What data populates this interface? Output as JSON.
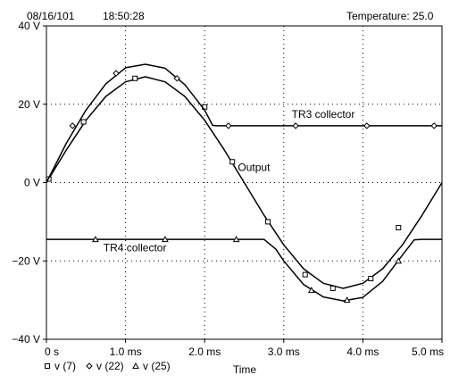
{
  "header": {
    "date": "08/16/101",
    "time": "18:50:28",
    "temperature": "Temperature: 25.0"
  },
  "chart_data": {
    "type": "line",
    "xlabel": "Time",
    "ylabel": "",
    "xlim": [
      0,
      5
    ],
    "ylim": [
      -40,
      40
    ],
    "grid": true,
    "x_ticks": [
      {
        "value": 0,
        "label": "0 s"
      },
      {
        "value": 1,
        "label": "1.0 ms"
      },
      {
        "value": 2,
        "label": "2.0 ms"
      },
      {
        "value": 3,
        "label": "3.0 ms"
      },
      {
        "value": 4,
        "label": "4.0 ms"
      },
      {
        "value": 5,
        "label": "5.0 ms"
      }
    ],
    "y_ticks": [
      {
        "value": 40,
        "label": "40 V"
      },
      {
        "value": 20,
        "label": "20 V"
      },
      {
        "value": 0,
        "label": "0 V"
      },
      {
        "value": -20,
        "label": "−20 V"
      },
      {
        "value": -40,
        "label": "−40 V"
      }
    ],
    "series": [
      {
        "name": "v (7)",
        "marker": "square",
        "x": [
          0,
          0.25,
          0.5,
          0.75,
          1.0,
          1.25,
          1.5,
          1.75,
          2.0,
          2.25,
          2.5,
          2.75,
          3.0,
          3.25,
          3.5,
          3.75,
          4.0,
          4.25,
          4.5,
          4.75,
          5.0
        ],
        "y": [
          0,
          8.3,
          15.9,
          22.0,
          25.7,
          27.0,
          25.7,
          22.0,
          15.9,
          8.3,
          0,
          -8.3,
          -15.9,
          -22.0,
          -25.7,
          -27.0,
          -25.7,
          -22.0,
          -15.9,
          -8.3,
          0
        ],
        "markers_x": [
          0.03,
          0.47,
          1.12,
          2.0,
          2.35,
          2.8,
          3.27,
          3.62,
          4.1,
          4.45
        ],
        "markers_y": [
          0.9,
          15.5,
          26.6,
          19.3,
          5.3,
          -10.0,
          -23.5,
          -27.0,
          -24.5,
          -11.5
        ]
      },
      {
        "name": "v (22)",
        "marker": "diamond",
        "x": [
          0,
          0.25,
          0.5,
          0.75,
          1.0,
          1.25,
          1.5,
          1.75,
          2.0,
          2.1,
          2.15,
          2.25,
          5.0
        ],
        "y": [
          0,
          10,
          18.5,
          25.2,
          29.3,
          30.2,
          29.2,
          25.0,
          18.5,
          14.6,
          14.5,
          14.5,
          14.5
        ],
        "markers_x": [
          0.33,
          0.88,
          1.65,
          2.3,
          3.15,
          4.05,
          4.9
        ],
        "markers_y": [
          14.5,
          27.9,
          26.6,
          14.5,
          14.5,
          14.5,
          14.5
        ]
      },
      {
        "name": "v (25)",
        "marker": "triangle",
        "x": [
          0,
          2.75,
          2.9,
          3.0,
          3.25,
          3.5,
          3.75,
          4.0,
          4.25,
          4.5,
          4.65,
          4.75,
          5.0
        ],
        "y": [
          -14.5,
          -14.5,
          -17.0,
          -20.0,
          -26.0,
          -29.2,
          -30.2,
          -29.3,
          -25.2,
          -18.5,
          -14.6,
          -14.5,
          -14.5
        ],
        "markers_x": [
          0.62,
          1.5,
          2.4,
          3.35,
          3.8,
          4.45
        ],
        "markers_y": [
          -14.5,
          -14.5,
          -14.5,
          -27.5,
          -30.0,
          -20.0
        ]
      }
    ],
    "annotations": [
      {
        "text": "TR3 collector",
        "x": 3.1,
        "y": 16.5
      },
      {
        "text": "Output",
        "x": 2.42,
        "y": 3.0
      },
      {
        "text": "TR4 collector",
        "x": 0.72,
        "y": -17.5
      }
    ]
  }
}
